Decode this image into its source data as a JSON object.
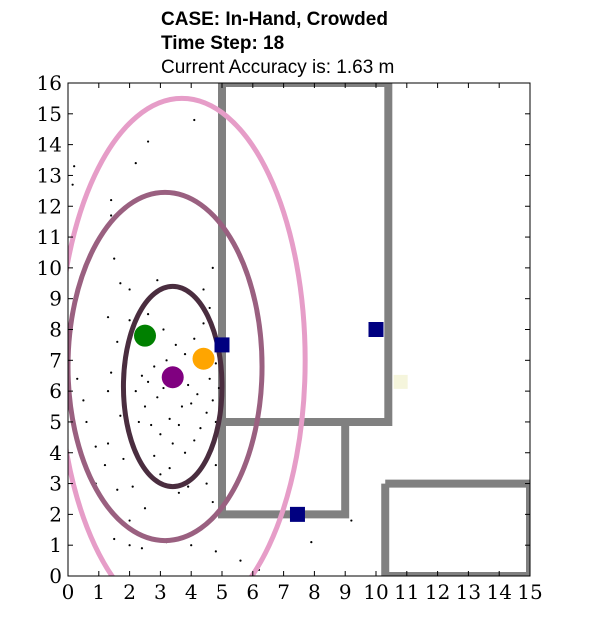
{
  "header": {
    "case_line": "CASE: In-Hand, Crowded",
    "time_line": "Time Step: 18",
    "accuracy_line": "Current Accuracy is: 1.63 m"
  },
  "chart_data": {
    "type": "scatter",
    "title": "CASE: In-Hand, Crowded",
    "subtitle": "Time Step: 18 / Current Accuracy is: 1.63 m",
    "xlabel": "",
    "ylabel": "",
    "xlim": [
      0,
      15
    ],
    "ylim": [
      0,
      16
    ],
    "grid": false,
    "x_ticks": [
      "0",
      "1",
      "2",
      "3",
      "4",
      "5",
      "6",
      "7",
      "8",
      "9",
      "10",
      "11",
      "12",
      "13",
      "14",
      "15"
    ],
    "y_ticks": [
      "0",
      "1",
      "2",
      "3",
      "4",
      "5",
      "6",
      "7",
      "8",
      "9",
      "10",
      "11",
      "12",
      "13",
      "14",
      "15",
      "16"
    ],
    "colors": {
      "walls": "#808080",
      "ellipse_outer": "#e69dc8",
      "ellipse_middle": "#9a6080",
      "ellipse_inner": "#4a2d3f",
      "anchor": "#000080",
      "green": "#008000",
      "orange": "#ffa500",
      "purple": "#800080",
      "pale_marker": "#f5f5dc",
      "particles": "#000000"
    },
    "walls": [
      {
        "name": "room-a",
        "x": [
          5,
          10.4,
          10.4,
          9,
          9,
          5,
          5
        ],
        "y": [
          16,
          16,
          5,
          5,
          2,
          2,
          16
        ]
      },
      {
        "name": "room-a-divider",
        "x": [
          5,
          9
        ],
        "y": [
          5,
          5
        ]
      },
      {
        "name": "room-b",
        "x": [
          10.3,
          15,
          15,
          10.3,
          10.3
        ],
        "y": [
          3,
          3,
          0,
          0,
          3
        ]
      }
    ],
    "ellipses": [
      {
        "name": "outer",
        "cx": 3.7,
        "cy": 7.0,
        "rx": 8.4,
        "ry": 8.4,
        "rx_units": 4.0,
        "ry_units": 8.5
      },
      {
        "name": "middle",
        "cx": 3.15,
        "cy": 6.8,
        "rx_units": 3.15,
        "ry_units": 5.65
      },
      {
        "name": "inner",
        "cx": 3.4,
        "cy": 6.15,
        "rx_units": 1.6,
        "ry_units": 3.25
      }
    ],
    "anchors": [
      {
        "x": 5.0,
        "y": 7.5
      },
      {
        "x": 10.0,
        "y": 8.0
      },
      {
        "x": 7.45,
        "y": 2.0
      }
    ],
    "estimates": [
      {
        "name": "green",
        "x": 2.5,
        "y": 7.8
      },
      {
        "name": "orange",
        "x": 4.4,
        "y": 7.05
      },
      {
        "name": "purple",
        "x": 3.4,
        "y": 6.45
      }
    ],
    "pale_marker": {
      "x": 10.8,
      "y": 6.3
    },
    "particles": [
      [
        0.2,
        13.3
      ],
      [
        0.15,
        12.7
      ],
      [
        2.2,
        13.4
      ],
      [
        2.6,
        14.1
      ],
      [
        4.1,
        14.8
      ],
      [
        1.4,
        12.2
      ],
      [
        1.4,
        11.7
      ],
      [
        1.7,
        9.5
      ],
      [
        1.5,
        10.3
      ],
      [
        2.0,
        9.3
      ],
      [
        2.9,
        9.6
      ],
      [
        4.7,
        10.0
      ],
      [
        4.4,
        9.3
      ],
      [
        4.6,
        8.7
      ],
      [
        4.4,
        8.2
      ],
      [
        4.7,
        8.0
      ],
      [
        1.3,
        8.4
      ],
      [
        1.6,
        7.6
      ],
      [
        2.0,
        8.3
      ],
      [
        2.6,
        8.5
      ],
      [
        3.1,
        8.0
      ],
      [
        3.5,
        7.5
      ],
      [
        3.8,
        7.2
      ],
      [
        4.1,
        7.7
      ],
      [
        4.6,
        7.2
      ],
      [
        4.8,
        6.9
      ],
      [
        4.6,
        6.4
      ],
      [
        4.9,
        6.1
      ],
      [
        4.7,
        5.7
      ],
      [
        4.5,
        5.3
      ],
      [
        4.8,
        5.0
      ],
      [
        4.3,
        4.8
      ],
      [
        4.1,
        4.4
      ],
      [
        3.8,
        4.0
      ],
      [
        3.4,
        4.3
      ],
      [
        3.0,
        4.6
      ],
      [
        2.7,
        4.9
      ],
      [
        2.5,
        5.5
      ],
      [
        2.2,
        6.0
      ],
      [
        2.4,
        6.5
      ],
      [
        2.8,
        6.8
      ],
      [
        3.2,
        7.0
      ],
      [
        3.6,
        6.6
      ],
      [
        3.9,
        6.2
      ],
      [
        4.2,
        5.9
      ],
      [
        3.7,
        5.5
      ],
      [
        3.3,
        5.1
      ],
      [
        2.9,
        5.8
      ],
      [
        2.6,
        6.3
      ],
      [
        3.1,
        6.1
      ],
      [
        1.3,
        6.0
      ],
      [
        1.4,
        6.6
      ],
      [
        0.3,
        6.4
      ],
      [
        0.5,
        5.7
      ],
      [
        0.6,
        5.0
      ],
      [
        0.9,
        4.2
      ],
      [
        1.3,
        4.3
      ],
      [
        1.2,
        3.6
      ],
      [
        1.8,
        3.8
      ],
      [
        0.9,
        3.0
      ],
      [
        0.3,
        2.5
      ],
      [
        1.0,
        2.6
      ],
      [
        1.6,
        2.8
      ],
      [
        2.1,
        2.9
      ],
      [
        3.0,
        3.3
      ],
      [
        3.6,
        2.7
      ],
      [
        3.9,
        2.9
      ],
      [
        4.5,
        3.0
      ],
      [
        4.7,
        2.4
      ],
      [
        4.8,
        3.6
      ],
      [
        2.5,
        2.2
      ],
      [
        2.0,
        1.8
      ],
      [
        1.9,
        1.6
      ],
      [
        1.5,
        1.2
      ],
      [
        2.0,
        1.0
      ],
      [
        2.4,
        0.9
      ],
      [
        3.2,
        1.1
      ],
      [
        4.0,
        1.0
      ],
      [
        4.8,
        0.8
      ],
      [
        5.6,
        0.5
      ],
      [
        6.2,
        0.2
      ],
      [
        7.4,
        2.2
      ],
      [
        7.9,
        1.1
      ],
      [
        9.2,
        1.8
      ],
      [
        3.6,
        4.9
      ],
      [
        4.0,
        5.6
      ],
      [
        2.8,
        3.9
      ],
      [
        3.3,
        3.5
      ],
      [
        1.7,
        5.2
      ],
      [
        2.3,
        5.0
      ]
    ]
  }
}
